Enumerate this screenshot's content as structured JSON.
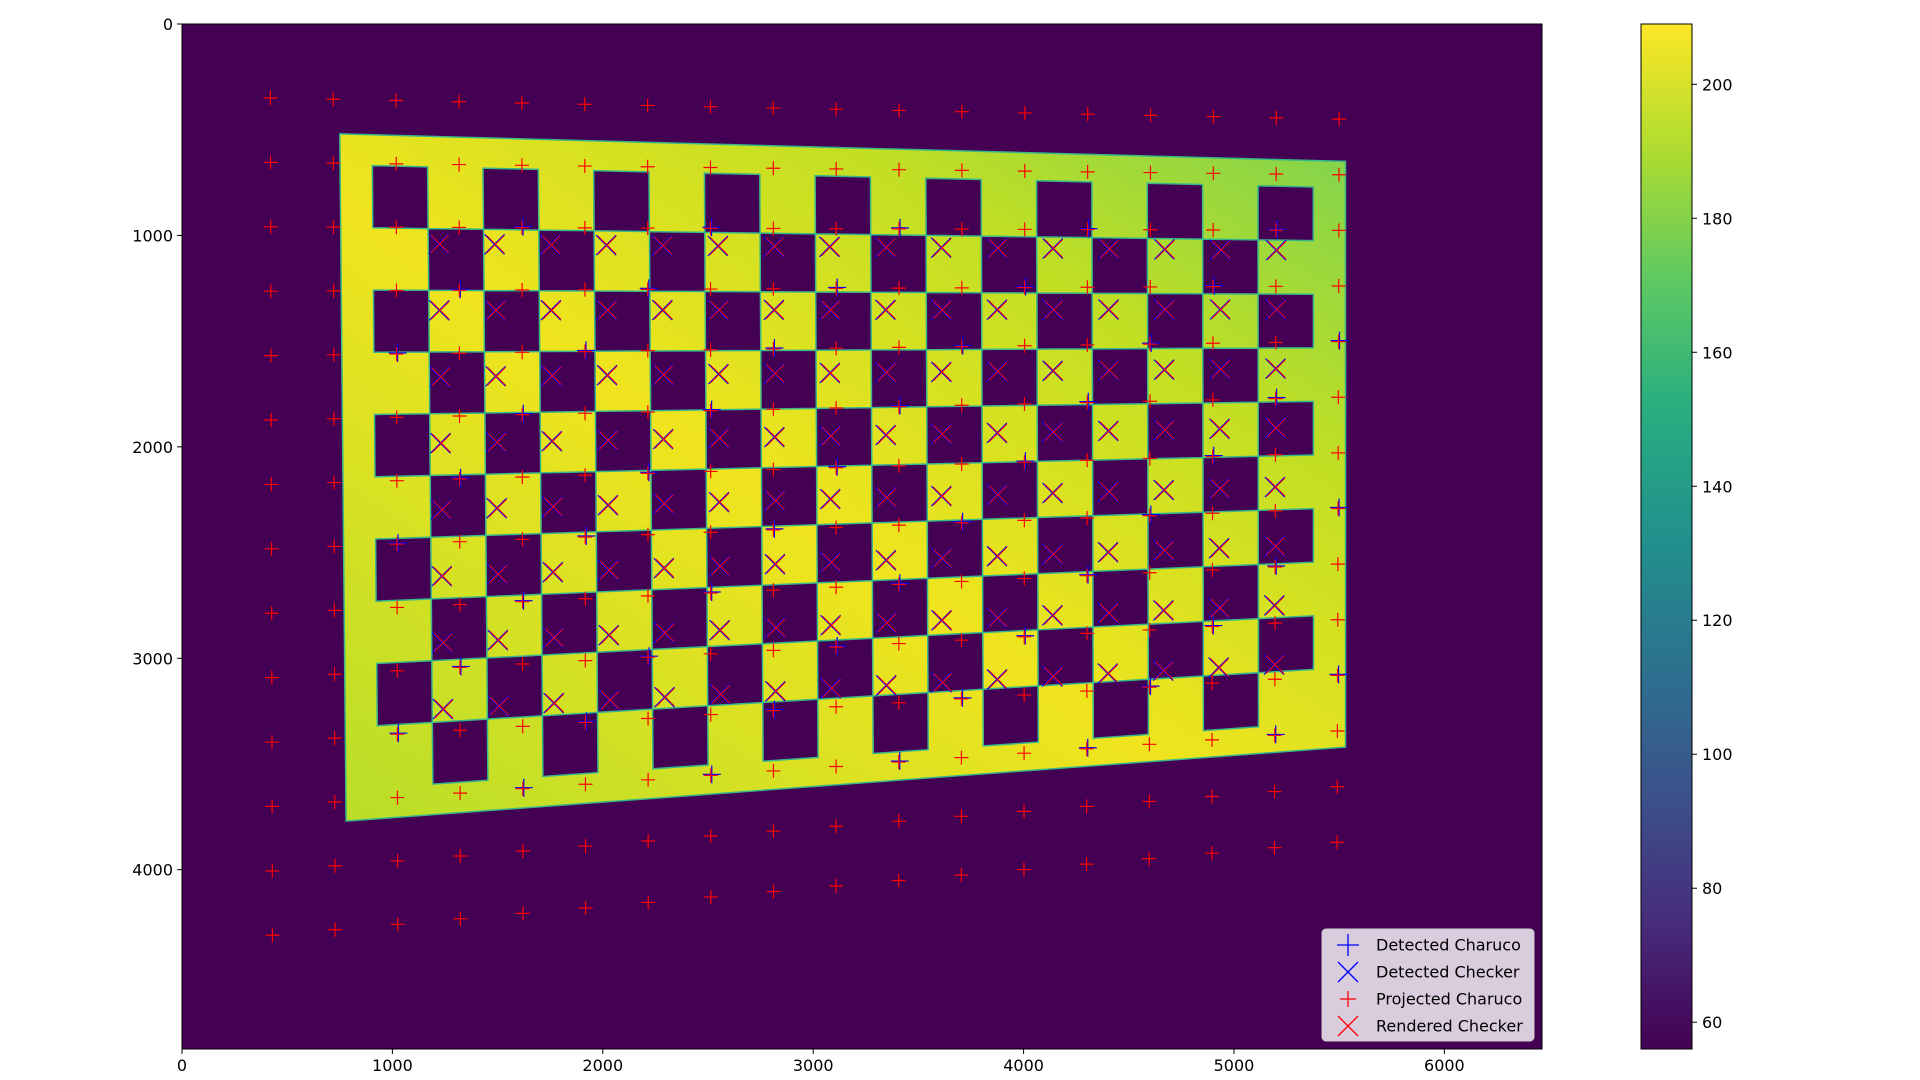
{
  "figure": {
    "background": "#ffffff"
  },
  "chart_data": [
    {
      "type": "heatmap",
      "description_of_content": "image",
      "title": "",
      "xlabel": "",
      "ylabel": "",
      "xlim": [
        0,
        6464
      ],
      "ylim": [
        4848,
        0
      ],
      "x_ticks": [
        0,
        1000,
        2000,
        3000,
        4000,
        5000,
        6000
      ],
      "y_ticks": [
        0,
        1000,
        2000,
        3000,
        4000
      ],
      "grid": false,
      "image": {
        "background_value": 56,
        "board_corners": [
          [
            750,
            520
          ],
          [
            5530,
            650
          ],
          [
            5530,
            3420
          ],
          [
            780,
            3770
          ]
        ],
        "board_value_range": [
          176,
          209
        ],
        "board_color_light": "#f2e11f",
        "board_color_dark": "#7ed34f",
        "board_cols": 17,
        "board_rows": 10,
        "hole_rows_offset_row": 1
      },
      "markers": {
        "charuco_grid": {
          "rows": 14,
          "cols": 18,
          "corners": {
            "top_left": [
              420,
              350
            ],
            "top_right": [
              5500,
              450
            ],
            "bottom_left": [
              430,
              4310
            ],
            "bottom_right": [
              5490,
              3870
            ]
          },
          "detected_rows": [
            2,
            11
          ],
          "detected_cols": [
            2,
            17
          ]
        },
        "checker_grid": {
          "rows": 8,
          "cols": 16,
          "corners": {
            "top_left": [
              1220,
              1040
            ],
            "top_right": [
              5200,
              1070
            ],
            "bottom_left": [
              1240,
              3240
            ],
            "bottom_right": [
              5190,
              3030
            ]
          }
        }
      },
      "legend": {
        "placement": "lower-right",
        "entries": [
          {
            "label": "Detected Charuco",
            "marker": "+",
            "color": "#0000ff"
          },
          {
            "label": "Detected Checker",
            "marker": "x",
            "color": "#0000ff"
          },
          {
            "label": "Projected Charuco",
            "marker": "+",
            "color": "#ff0000"
          },
          {
            "label": "Rendered Checker",
            "marker": "x",
            "color": "#ff0000"
          }
        ]
      }
    },
    {
      "type": "colorbar",
      "range": [
        56,
        209
      ],
      "ticks": [
        60,
        80,
        100,
        120,
        140,
        160,
        180,
        200
      ],
      "colormap": "viridis"
    }
  ]
}
